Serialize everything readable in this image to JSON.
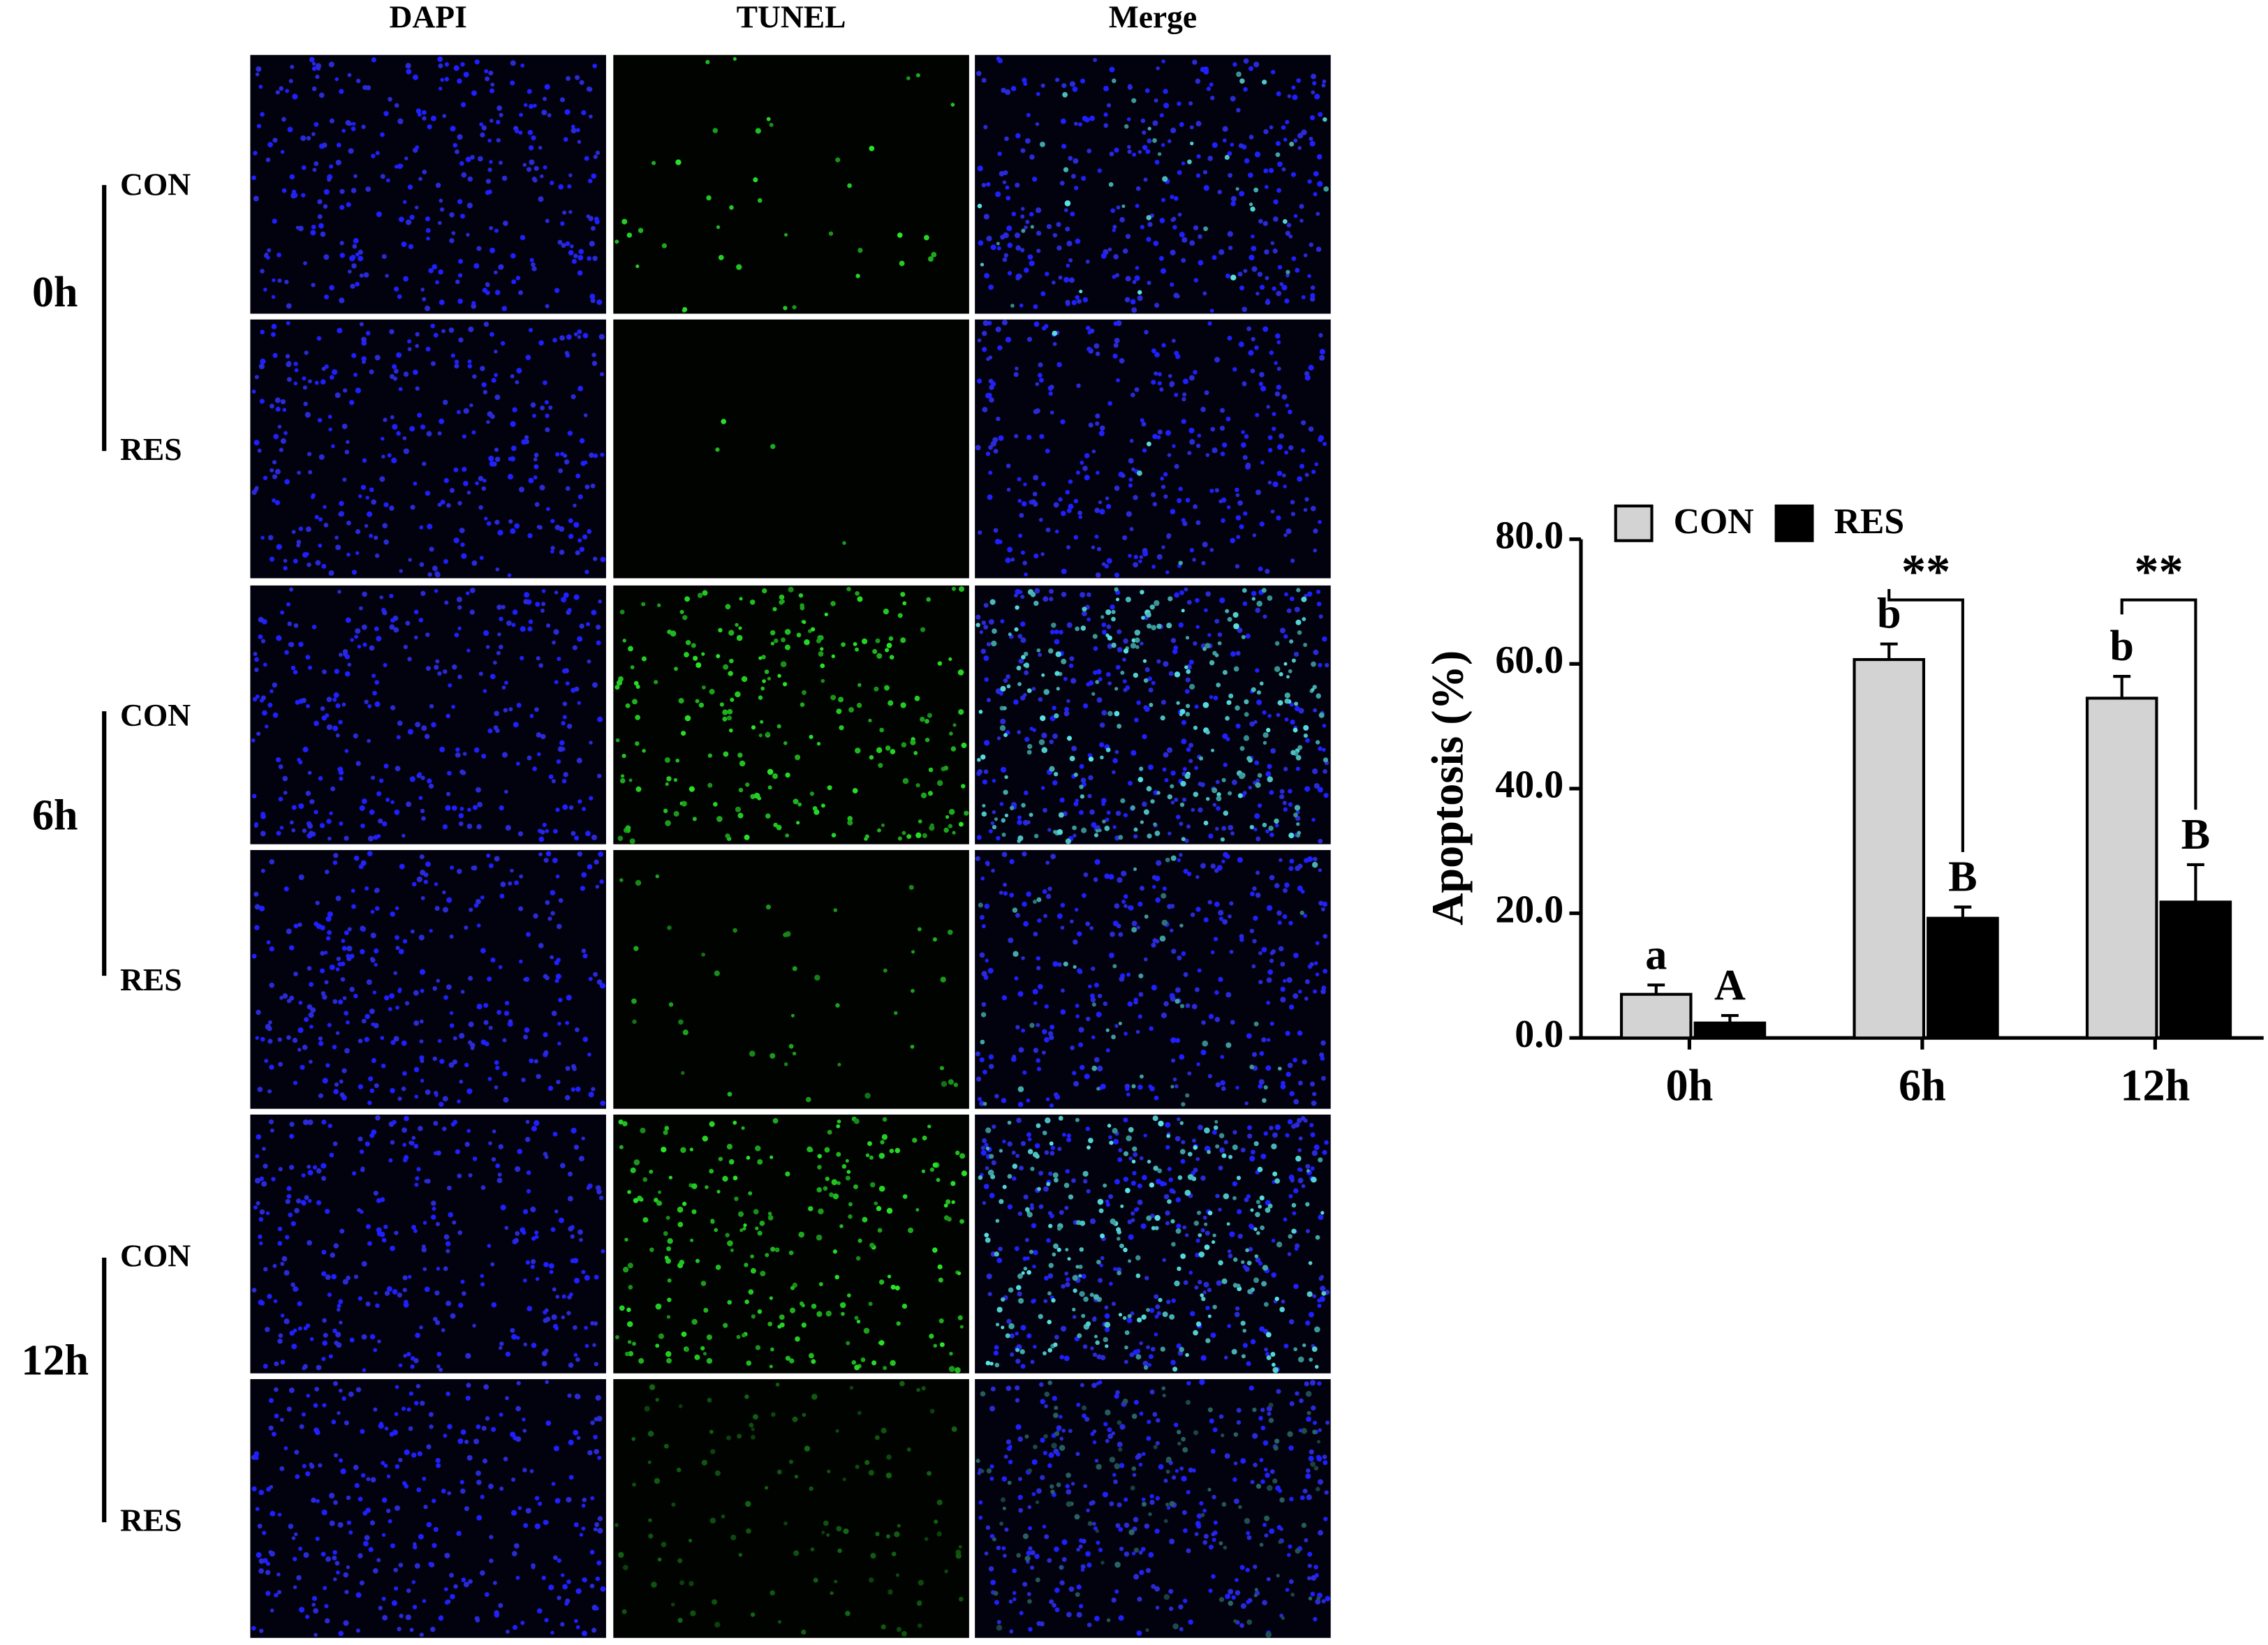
{
  "panels": {
    "columns": [
      "DAPI",
      "TUNEL",
      "Merge"
    ],
    "groups": [
      {
        "label": "0h",
        "rows": [
          "CON",
          "RES"
        ]
      },
      {
        "label": "6h",
        "rows": [
          "CON",
          "RES"
        ]
      },
      {
        "label": "12h",
        "rows": [
          "CON",
          "RES"
        ]
      }
    ]
  },
  "chart_data": {
    "type": "bar",
    "y_label": "Apoptosis (%)",
    "categories": [
      "0h",
      "6h",
      "12h"
    ],
    "series": [
      {
        "name": "CON",
        "color": "#d3d3d3",
        "values": [
          7.0,
          60.7,
          54.5
        ],
        "errors": [
          1.5,
          2.5,
          3.5
        ],
        "letters": [
          "a",
          "b",
          "b"
        ]
      },
      {
        "name": "RES",
        "color": "#000000",
        "values": [
          2.4,
          19.2,
          21.8
        ],
        "errors": [
          1.2,
          1.8,
          6.0
        ],
        "letters": [
          "A",
          "B",
          "B"
        ]
      }
    ],
    "significance": [
      {
        "category": "6h",
        "label": "**"
      },
      {
        "category": "12h",
        "label": "**"
      }
    ],
    "ylim": [
      0,
      80
    ],
    "yticks": [
      {
        "value": 0,
        "label": "0.0"
      },
      {
        "value": 20,
        "label": "20.0"
      },
      {
        "value": 40,
        "label": "40.0"
      },
      {
        "value": 60,
        "label": "60.0"
      },
      {
        "value": 80,
        "label": "80.0"
      }
    ],
    "legend": "top-left"
  }
}
